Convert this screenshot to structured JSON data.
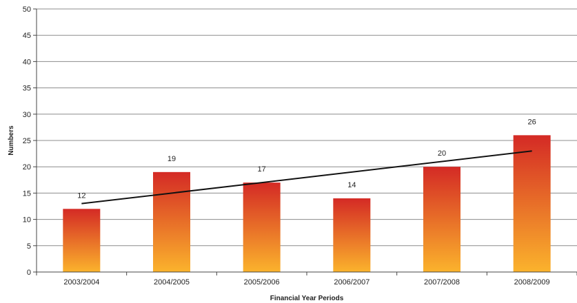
{
  "chart_data": {
    "type": "bar",
    "categories": [
      "2003/2004",
      "2004/2005",
      "2005/2006",
      "2006/2007",
      "2007/2008",
      "2008/2009"
    ],
    "values": [
      12,
      19,
      17,
      14,
      20,
      26
    ],
    "data_labels": [
      "12",
      "19",
      "17",
      "14",
      "20",
      "26"
    ],
    "trendline": {
      "type": "linear",
      "start": 13,
      "end": 23
    },
    "xlabel": "Financial Year Periods",
    "ylabel": "Numbers",
    "ylim": [
      0,
      50
    ],
    "yticks": [
      "0",
      "5",
      "10",
      "15",
      "20",
      "25",
      "30",
      "35",
      "40",
      "45",
      "50"
    ],
    "grid": "horizontal",
    "colors": {
      "bar_top": "#d42a25",
      "bar_bottom": "#fbb32c",
      "trendline": "#111111",
      "grid": "#8c8c8c"
    }
  }
}
